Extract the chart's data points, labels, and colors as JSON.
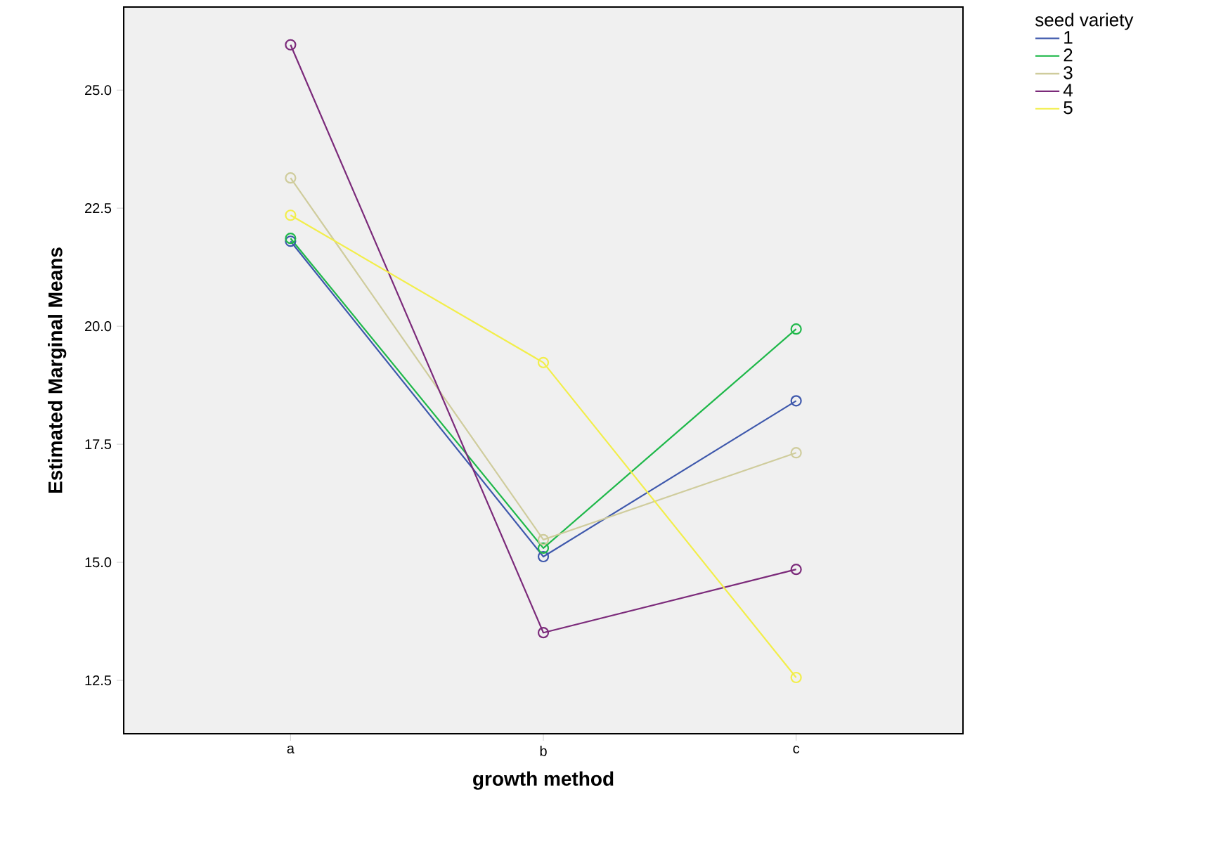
{
  "chart_data": {
    "type": "line",
    "xlabel": "growth method",
    "ylabel": "Estimated Marginal Means",
    "legend_title": "seed variety",
    "categories": [
      "a",
      "b",
      "c"
    ],
    "series": [
      {
        "name": "1",
        "color": "#3e58ac",
        "values": [
          21.8,
          15.12,
          18.42
        ]
      },
      {
        "name": "2",
        "color": "#1fb84a",
        "values": [
          21.86,
          15.3,
          19.94
        ]
      },
      {
        "name": "3",
        "color": "#cfcc9c",
        "values": [
          23.14,
          15.48,
          17.32
        ]
      },
      {
        "name": "4",
        "color": "#7b2a7a",
        "values": [
          25.96,
          13.51,
          14.85
        ]
      },
      {
        "name": "5",
        "color": "#f2ee4a",
        "values": [
          22.35,
          19.23,
          12.56
        ]
      }
    ],
    "ylim": [
      11.37,
      26.76
    ],
    "yticks": [
      {
        "value": 12.5,
        "label": "12.5"
      },
      {
        "value": 15,
        "label": "15.0"
      },
      {
        "value": 17.5,
        "label": "17.5"
      },
      {
        "value": 20,
        "label": "20.0"
      },
      {
        "value": 22.5,
        "label": "22.5"
      },
      {
        "value": 25,
        "label": "25.0"
      }
    ],
    "marker": "circle",
    "line_style": "solid",
    "grid": false,
    "legend": "right"
  }
}
